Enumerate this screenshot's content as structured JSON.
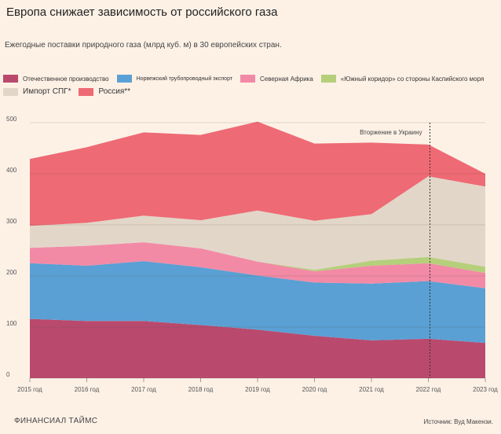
{
  "title": "Европа снижает зависимость от российского газа",
  "subtitle": "Ежегодные поставки природного газа (млрд куб. м) в 30 европейских стран.",
  "footer": {
    "brand": "ФИНАНСИАЛ ТАЙМС",
    "source": "Источник: Вуд Макензи."
  },
  "chart_data": {
    "type": "area",
    "stacked": true,
    "x": [
      "2015 год",
      "2016 год",
      "2017 год",
      "2018 год",
      "2019 год",
      "2020 год",
      "2021 год",
      "2022 год",
      "2023 год"
    ],
    "yticks": [
      0,
      100,
      200,
      300,
      400,
      500
    ],
    "ylim": [
      0,
      500
    ],
    "series": [
      {
        "name": "Отечественное производство",
        "color": "#b94a6e",
        "values": [
          116,
          112,
          112,
          104,
          95,
          83,
          74,
          77,
          69
        ]
      },
      {
        "name": "Норвежский трубопроводный экспорт",
        "color": "#5aa0d4",
        "values": [
          109,
          108,
          117,
          113,
          106,
          104,
          111,
          113,
          107
        ]
      },
      {
        "name": "Северная Африка",
        "color": "#f28aa6",
        "values": [
          30,
          39,
          37,
          37,
          27,
          22,
          35,
          35,
          30
        ]
      },
      {
        "name": "«Южный коридор» со стороны Каспийского моря",
        "color": "#b5cf7b",
        "values": [
          0,
          0,
          0,
          0,
          0,
          3,
          10,
          12,
          12
        ]
      },
      {
        "name": "Импорт СПГ*",
        "color": "#e2d6c9",
        "values": [
          43,
          45,
          52,
          55,
          100,
          96,
          91,
          158,
          157
        ]
      },
      {
        "name": "Россия**",
        "color": "#ee6a74",
        "values": [
          131,
          148,
          163,
          167,
          174,
          151,
          140,
          62,
          25
        ]
      }
    ],
    "annotations": [
      {
        "label": "Вторжение в Украину",
        "x": "2022 год"
      }
    ]
  }
}
